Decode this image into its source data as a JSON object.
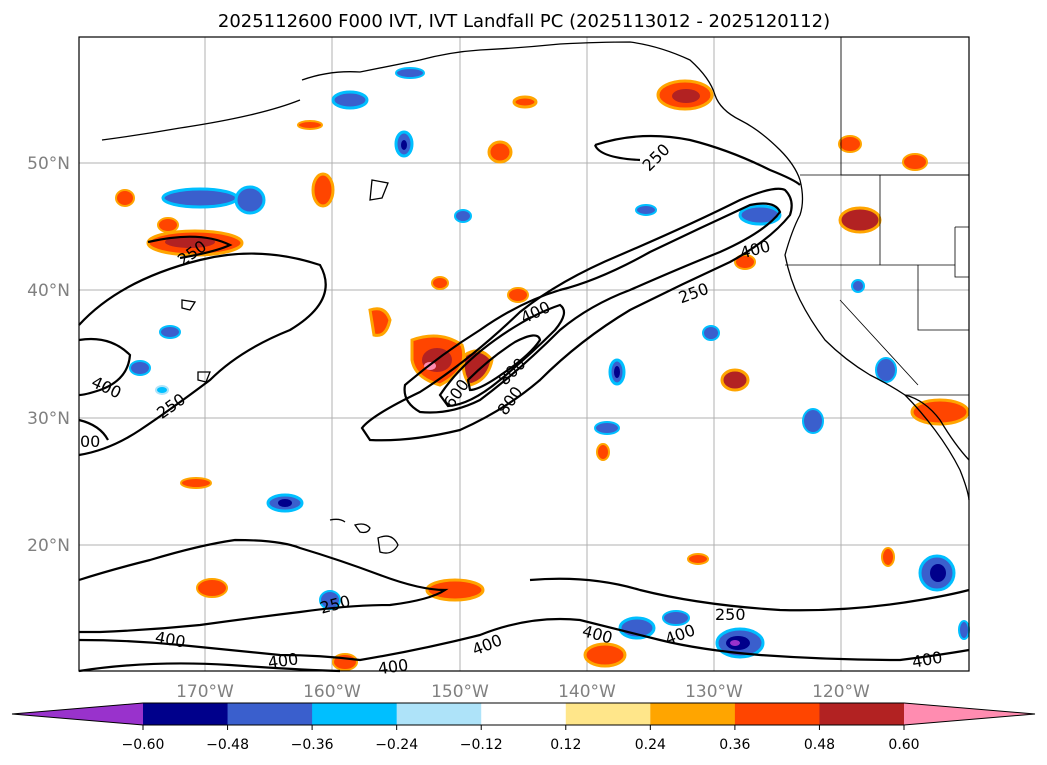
{
  "title": "2025112600 F000 IVT, IVT Landfall PC (2025113012 - 2025120112)",
  "lat_labels": [
    "50°N",
    "40°N",
    "30°N",
    "20°N"
  ],
  "lon_labels": [
    "170°W",
    "160°W",
    "150°W",
    "140°W",
    "130°W",
    "120°W"
  ],
  "colorbar": {
    "ticks": [
      "−0.60",
      "−0.48",
      "−0.36",
      "−0.24",
      "−0.12",
      "0.12",
      "0.24",
      "0.36",
      "0.48",
      "0.60"
    ],
    "colors": [
      "#9932cc",
      "#00008b",
      "#3a5fcd",
      "#00bfff",
      "#aee3f9",
      "#ffffff",
      "#ffe68a",
      "#ffa500",
      "#ff4500",
      "#b22222",
      "#ff8cb0"
    ]
  },
  "contour_labels": [
    "250",
    "250",
    "250",
    "250",
    "250",
    "250",
    "400",
    "400",
    "400",
    "400",
    "400",
    "400",
    "400",
    "400",
    "400",
    "400",
    "600",
    "800",
    "800",
    "00"
  ],
  "colors": {
    "positive_dark": "#b22222",
    "positive_mid": "#ff4500",
    "positive_light": "#ffa500",
    "negative_dark": "#00008b",
    "negative_mid": "#3a5fcd",
    "negative_light": "#00bfff"
  }
}
